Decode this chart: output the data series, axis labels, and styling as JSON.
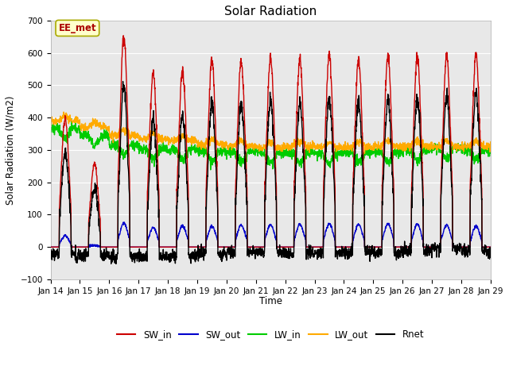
{
  "title": "Solar Radiation",
  "ylabel": "Solar Radiation (W/m2)",
  "xlabel": "Time",
  "ylim": [
    -100,
    700
  ],
  "yticks": [
    -100,
    0,
    100,
    200,
    300,
    400,
    500,
    600,
    700
  ],
  "xtick_labels": [
    "Jan 14",
    "Jan 15",
    "Jan 16",
    "Jan 17",
    "Jan 18",
    "Jan 19",
    "Jan 20",
    "Jan 21",
    "Jan 22",
    "Jan 23",
    "Jan 24",
    "Jan 25",
    "Jan 26",
    "Jan 27",
    "Jan 28",
    "Jan 29"
  ],
  "series": {
    "SW_in": {
      "color": "#cc0000",
      "lw": 1.0
    },
    "SW_out": {
      "color": "#0000cc",
      "lw": 1.0
    },
    "LW_in": {
      "color": "#00cc00",
      "lw": 1.0
    },
    "LW_out": {
      "color": "#ffaa00",
      "lw": 1.0
    },
    "Rnet": {
      "color": "#000000",
      "lw": 1.0
    }
  },
  "annotation_text": "EE_met",
  "annotation_color": "#aa0000",
  "annotation_bg": "#ffffcc",
  "annotation_edge": "#aaaa00",
  "outer_bg": "#ffffff",
  "plot_bg": "#e8e8e8",
  "grid_color": "#ffffff",
  "n_days": 15,
  "spd": 144,
  "sw_peaks": [
    400,
    260,
    655,
    535,
    545,
    580,
    575,
    590,
    580,
    595,
    580,
    590,
    590,
    590,
    595
  ],
  "sw_out_peaks": [
    35,
    5,
    75,
    60,
    65,
    65,
    68,
    70,
    70,
    72,
    70,
    72,
    70,
    68,
    65
  ],
  "lw_in_base": [
    365,
    345,
    315,
    305,
    300,
    295,
    295,
    290,
    290,
    290,
    295,
    295,
    300,
    305,
    300
  ],
  "lw_out_base": [
    390,
    370,
    345,
    335,
    328,
    318,
    312,
    308,
    312,
    308,
    308,
    312,
    312,
    312,
    312
  ],
  "rnet_night": -15,
  "figsize": [
    6.4,
    4.8
  ],
  "dpi": 100
}
